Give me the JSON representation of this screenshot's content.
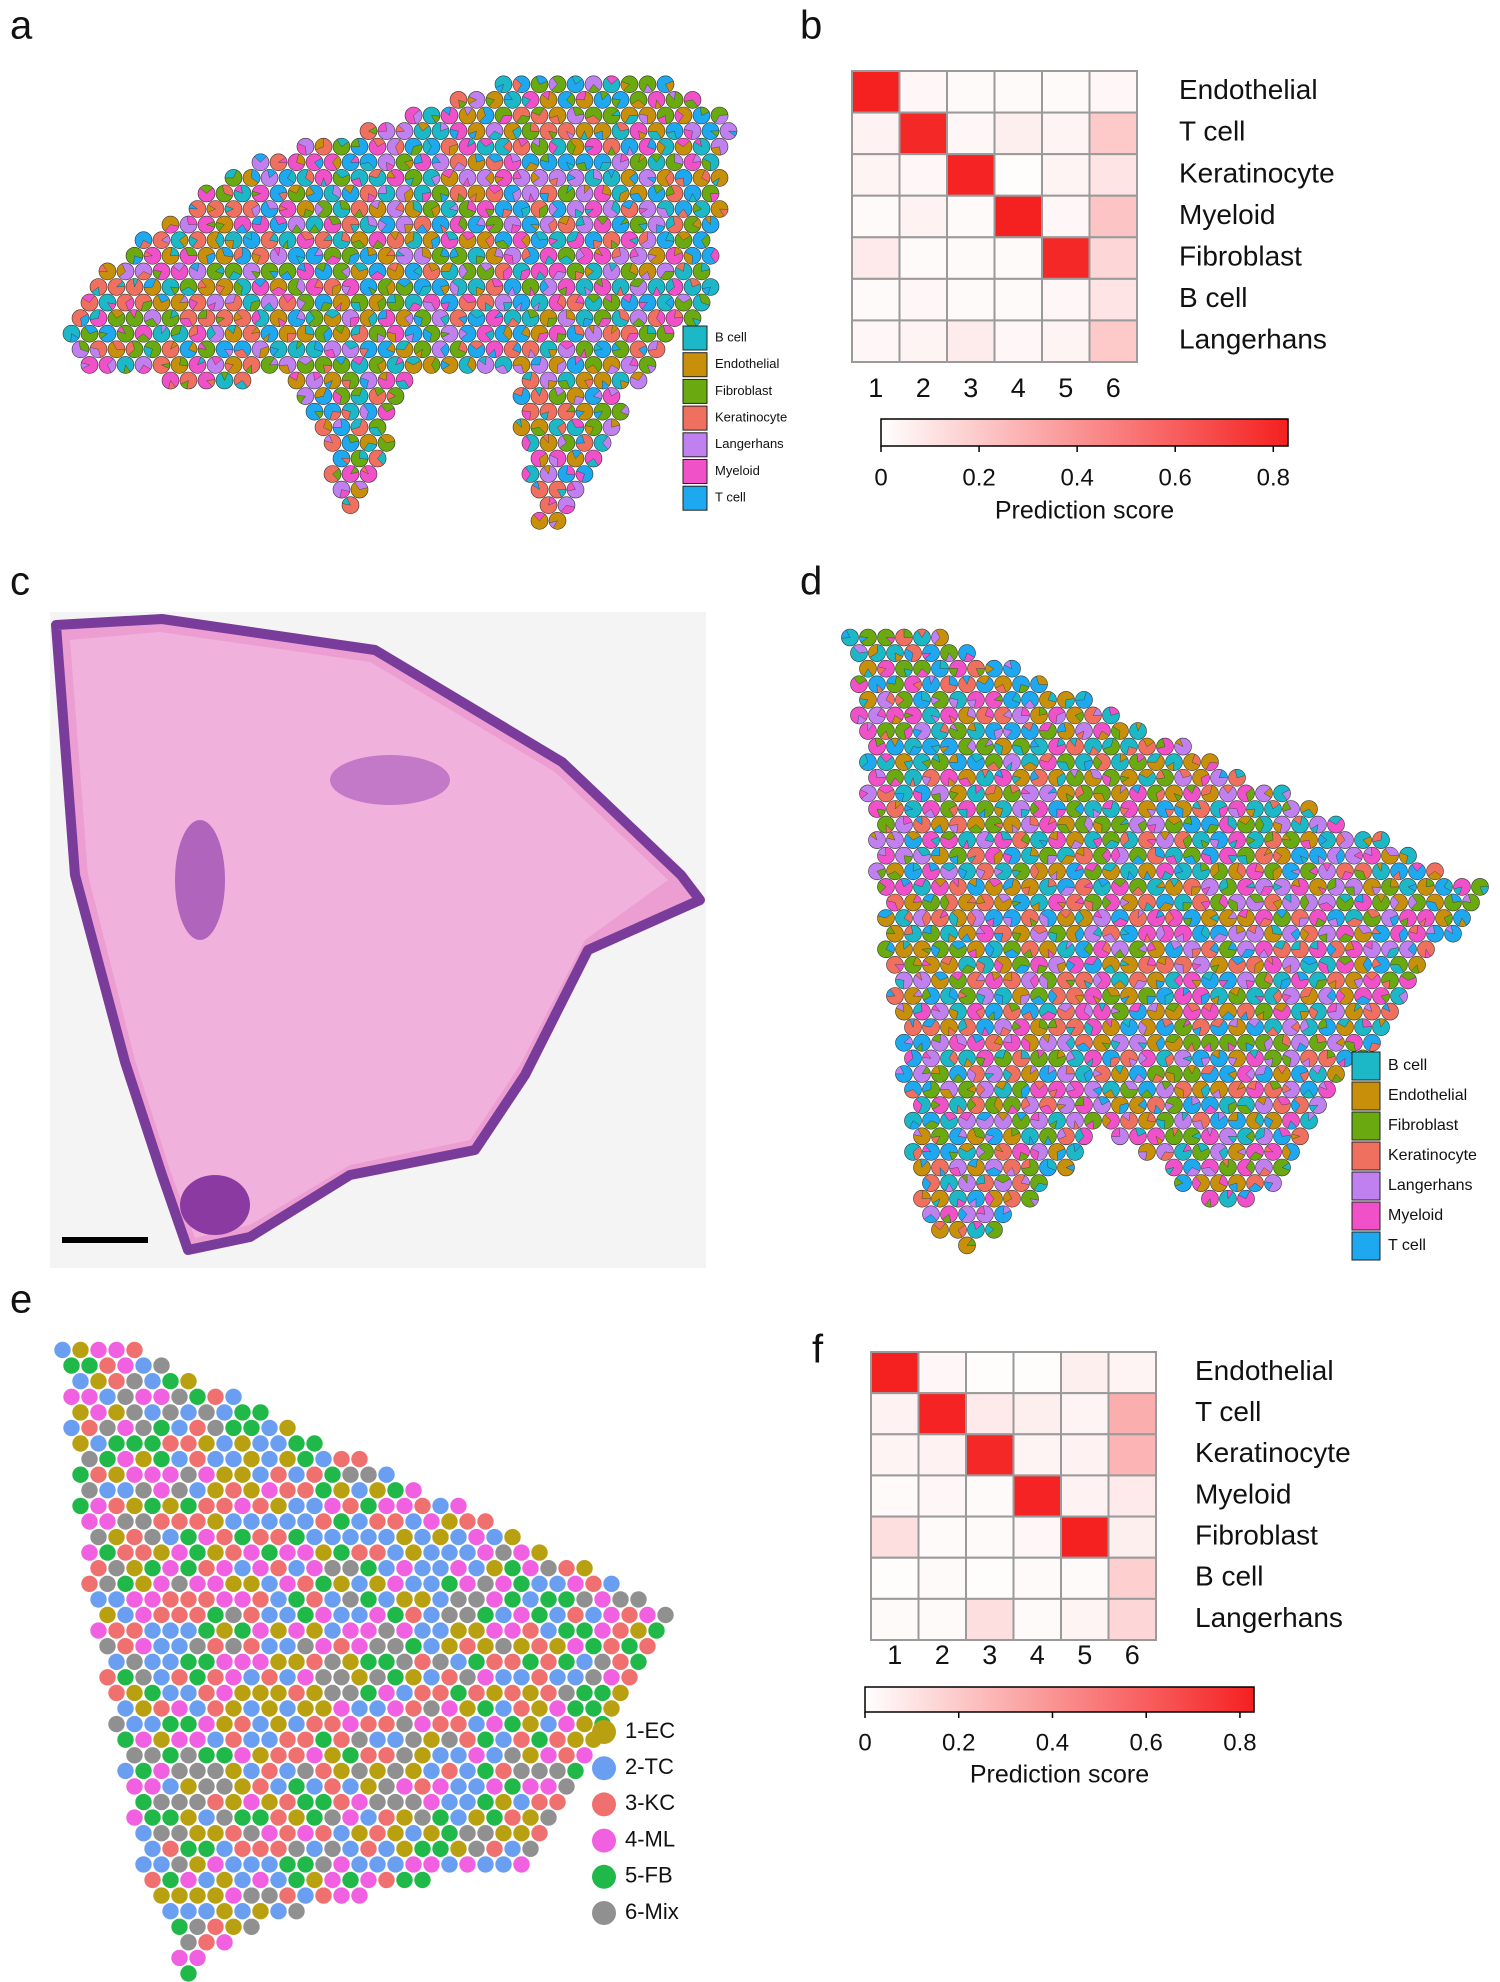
{
  "panel_labels": [
    "a",
    "b",
    "c",
    "d",
    "e",
    "f"
  ],
  "legend_a": [
    {
      "name": "B cell",
      "color": "#1cb8c8"
    },
    {
      "name": "Endothelial",
      "color": "#c8900a"
    },
    {
      "name": "Fibroblast",
      "color": "#6aaa10"
    },
    {
      "name": "Keratinocyte",
      "color": "#f07060"
    },
    {
      "name": "Langerhans",
      "color": "#c080f0"
    },
    {
      "name": "Myeloid",
      "color": "#f050c8"
    },
    {
      "name": "T cell",
      "color": "#1ea8f0"
    }
  ],
  "legend_d": [
    {
      "name": "B cell",
      "color": "#1cb8c8"
    },
    {
      "name": "Endothelial",
      "color": "#c8900a"
    },
    {
      "name": "Fibroblast",
      "color": "#6aaa10"
    },
    {
      "name": "Keratinocyte",
      "color": "#f07060"
    },
    {
      "name": "Langerhans",
      "color": "#c080f0"
    },
    {
      "name": "Myeloid",
      "color": "#f050c8"
    },
    {
      "name": "T cell",
      "color": "#1ea8f0"
    }
  ],
  "legend_e": [
    {
      "name": "1-EC",
      "color": "#b8a010"
    },
    {
      "name": "2-TC",
      "color": "#6a9ef0"
    },
    {
      "name": "3-KC",
      "color": "#f07070"
    },
    {
      "name": "4-ML",
      "color": "#f060e0"
    },
    {
      "name": "5-FB",
      "color": "#20b848"
    },
    {
      "name": "6-Mix",
      "color": "#909090"
    }
  ],
  "chart_data": [
    {
      "type": "heatmap",
      "rows": [
        "Endothelial",
        "T cell",
        "Keratinocyte",
        "Myeloid",
        "Fibroblast",
        "B cell",
        "Langerhans"
      ],
      "columns": [
        1,
        2,
        3,
        4,
        5,
        6
      ],
      "values": [
        [
          0.83,
          0.03,
          0.02,
          0.02,
          0.02,
          0.03
        ],
        [
          0.05,
          0.8,
          0.03,
          0.06,
          0.04,
          0.2
        ],
        [
          0.04,
          0.03,
          0.82,
          0.01,
          0.04,
          0.1
        ],
        [
          0.02,
          0.05,
          0.02,
          0.85,
          0.03,
          0.22
        ],
        [
          0.08,
          0.02,
          0.02,
          0.02,
          0.8,
          0.15
        ],
        [
          0.02,
          0.03,
          0.02,
          0.02,
          0.03,
          0.1
        ],
        [
          0.03,
          0.04,
          0.07,
          0.03,
          0.04,
          0.2
        ]
      ],
      "colorbar_title": "Prediction score",
      "lim": [
        0,
        0.83
      ],
      "ticks": [
        0,
        0.2,
        0.4,
        0.6,
        0.8
      ],
      "colors": [
        "#ffffff",
        "#f52020"
      ]
    },
    {
      "type": "heatmap",
      "rows": [
        "Endothelial",
        "T cell",
        "Keratinocyte",
        "Myeloid",
        "Fibroblast",
        "B cell",
        "Langerhans"
      ],
      "columns": [
        1,
        2,
        3,
        4,
        5,
        6
      ],
      "values": [
        [
          0.85,
          0.03,
          0.01,
          0.01,
          0.06,
          0.04
        ],
        [
          0.05,
          0.82,
          0.08,
          0.06,
          0.04,
          0.3
        ],
        [
          0.04,
          0.05,
          0.8,
          0.04,
          0.05,
          0.28
        ],
        [
          0.02,
          0.03,
          0.02,
          0.82,
          0.05,
          0.08
        ],
        [
          0.12,
          0.02,
          0.02,
          0.03,
          0.83,
          0.06
        ],
        [
          0.01,
          0.02,
          0.01,
          0.02,
          0.02,
          0.18
        ],
        [
          0.02,
          0.02,
          0.12,
          0.02,
          0.04,
          0.15
        ]
      ],
      "colorbar_title": "Prediction score",
      "lim": [
        0,
        0.83
      ],
      "ticks": [
        0,
        0.2,
        0.4,
        0.6,
        0.8
      ],
      "colors": [
        "#ffffff",
        "#f52020"
      ]
    }
  ]
}
